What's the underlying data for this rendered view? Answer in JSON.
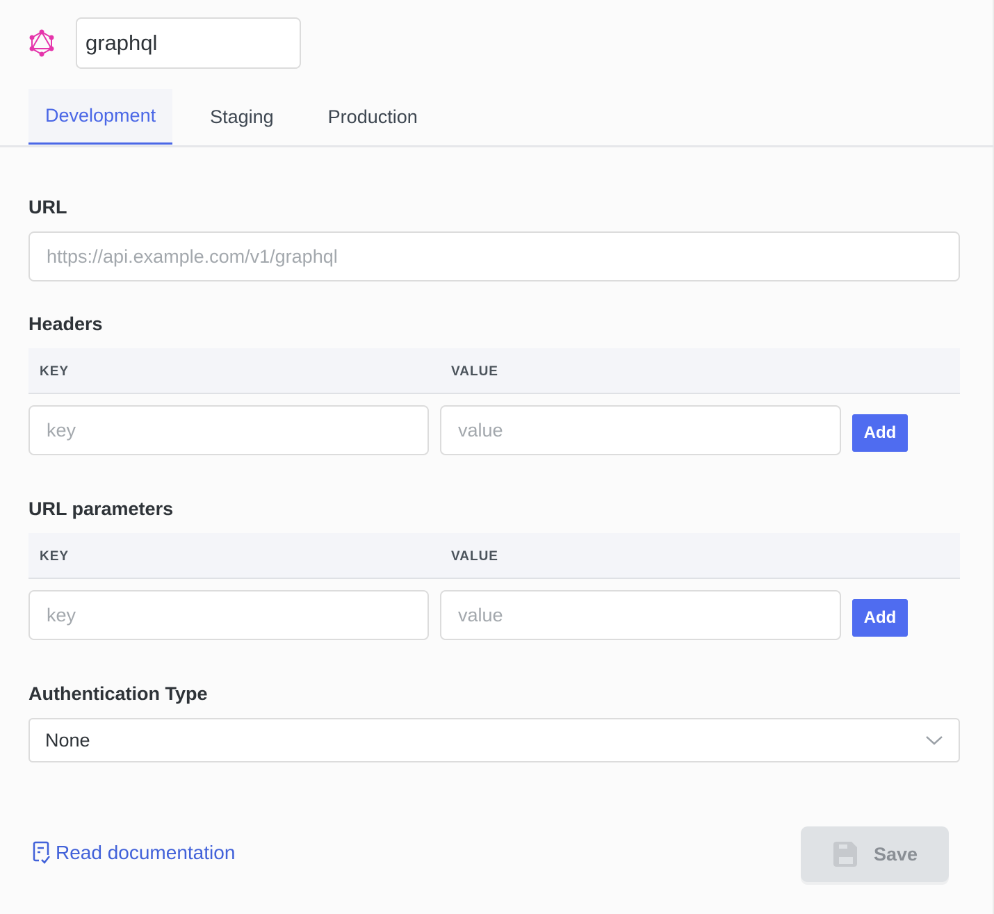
{
  "header": {
    "logo_icon": "graphql-icon",
    "name_value": "graphql",
    "brand_color": "#e535ab"
  },
  "tabs": [
    {
      "label": "Development",
      "active": true
    },
    {
      "label": "Staging",
      "active": false
    },
    {
      "label": "Production",
      "active": false
    }
  ],
  "url": {
    "label": "URL",
    "placeholder": "https://api.example.com/v1/graphql",
    "value": ""
  },
  "headers": {
    "label": "Headers",
    "col_key": "KEY",
    "col_value": "VALUE",
    "key_placeholder": "key",
    "value_placeholder": "value",
    "add_label": "Add"
  },
  "params": {
    "label": "URL parameters",
    "col_key": "KEY",
    "col_value": "VALUE",
    "key_placeholder": "key",
    "value_placeholder": "value",
    "add_label": "Add"
  },
  "auth": {
    "label": "Authentication Type",
    "selected": "None"
  },
  "footer": {
    "doc_label": "Read documentation",
    "save_label": "Save"
  },
  "colors": {
    "accent": "#4f6cf0",
    "link": "#4161d9"
  }
}
